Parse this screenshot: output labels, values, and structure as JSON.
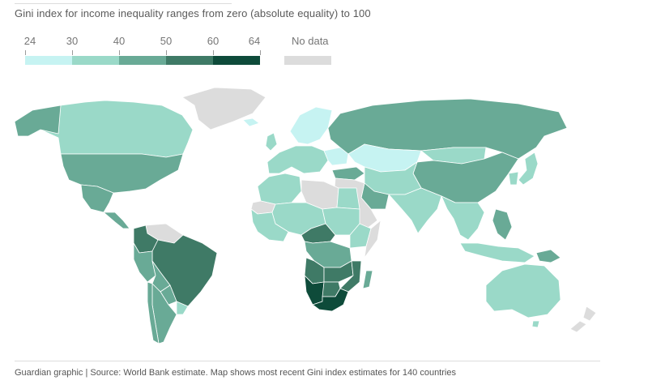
{
  "subtitle": "Gini index for income inequality ranges from zero (absolute equality) to 100",
  "legend": {
    "ticks": [
      "24",
      "30",
      "40",
      "50",
      "60",
      "64"
    ],
    "colors": [
      "#c6f3f2",
      "#9ad9c8",
      "#69aa96",
      "#3f7a66",
      "#0e4b3a"
    ],
    "no_data_label": "No data",
    "no_data_color": "#dcdcdc"
  },
  "regions": [
    {
      "name": "Canada",
      "band": "30-40"
    },
    {
      "name": "United States",
      "band": "40-50"
    },
    {
      "name": "Mexico",
      "band": "40-50"
    },
    {
      "name": "Central America",
      "band": "40-50"
    },
    {
      "name": "Colombia",
      "band": "50-60"
    },
    {
      "name": "Venezuela",
      "band": "no data"
    },
    {
      "name": "Brazil",
      "band": "50-60"
    },
    {
      "name": "Peru",
      "band": "40-50"
    },
    {
      "name": "Bolivia",
      "band": "40-50"
    },
    {
      "name": "Paraguay",
      "band": "40-50"
    },
    {
      "name": "Argentina",
      "band": "40-50"
    },
    {
      "name": "Chile",
      "band": "40-50"
    },
    {
      "name": "Uruguay",
      "band": "30-40"
    },
    {
      "name": "Greenland",
      "band": "no data"
    },
    {
      "name": "Iceland",
      "band": "24-30"
    },
    {
      "name": "United Kingdom",
      "band": "30-40"
    },
    {
      "name": "Scandinavia",
      "band": "24-30"
    },
    {
      "name": "Western Europe",
      "band": "30-40"
    },
    {
      "name": "Ukraine and Belarus",
      "band": "24-30"
    },
    {
      "name": "Russia",
      "band": "40-50"
    },
    {
      "name": "Kazakhstan",
      "band": "24-30"
    },
    {
      "name": "Mongolia",
      "band": "30-40"
    },
    {
      "name": "China",
      "band": "40-50"
    },
    {
      "name": "Japan",
      "band": "30-40"
    },
    {
      "name": "Korea",
      "band": "30-40"
    },
    {
      "name": "Central Asia",
      "band": "30-40"
    },
    {
      "name": "Middle East",
      "band": "no data"
    },
    {
      "name": "Turkey",
      "band": "40-50"
    },
    {
      "name": "Iran",
      "band": "40-50"
    },
    {
      "name": "India",
      "band": "30-40"
    },
    {
      "name": "Southeast Asia",
      "band": "30-40"
    },
    {
      "name": "Philippines",
      "band": "40-50"
    },
    {
      "name": "Indonesia",
      "band": "30-40"
    },
    {
      "name": "Papua New Guinea",
      "band": "40-50"
    },
    {
      "name": "Australia",
      "band": "30-40"
    },
    {
      "name": "New Zealand",
      "band": "no data"
    },
    {
      "name": "North Africa",
      "band": "30-40"
    },
    {
      "name": "Libya",
      "band": "no data"
    },
    {
      "name": "Egypt",
      "band": "30-40"
    },
    {
      "name": "West Africa",
      "band": "30-40"
    },
    {
      "name": "Sahel",
      "band": "30-40"
    },
    {
      "name": "Central African Republic",
      "band": "50-60"
    },
    {
      "name": "Sudan",
      "band": "30-40"
    },
    {
      "name": "Somalia",
      "band": "no data"
    },
    {
      "name": "Ethiopia",
      "band": "30-40"
    },
    {
      "name": "Congo",
      "band": "40-50"
    },
    {
      "name": "Angola",
      "band": "50-60"
    },
    {
      "name": "Zambia",
      "band": "50-60"
    },
    {
      "name": "Mozambique",
      "band": "50-60"
    },
    {
      "name": "Namibia",
      "band": "60-64"
    },
    {
      "name": "South Africa",
      "band": "60-64"
    },
    {
      "name": "Botswana",
      "band": "50-60"
    },
    {
      "name": "Madagascar",
      "band": "40-50"
    },
    {
      "name": "Western Sahara",
      "band": "no data"
    }
  ],
  "source": "Guardian graphic | Source: World Bank estimate. Map shows most recent Gini index estimates for 140 countries"
}
